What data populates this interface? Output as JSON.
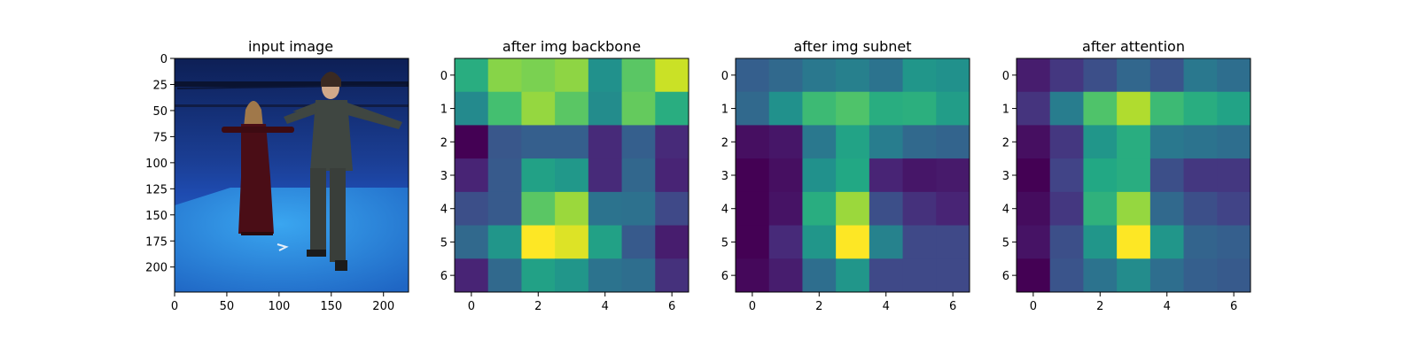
{
  "chart_data": [
    {
      "type": "image",
      "title": "input image",
      "xticks": [
        0,
        50,
        100,
        150,
        200
      ],
      "yticks": [
        0,
        25,
        50,
        75,
        100,
        125,
        150,
        175,
        200
      ],
      "xlim": [
        0,
        224
      ],
      "ylim": [
        224,
        0
      ],
      "scene": {
        "background": "#1a3f9a",
        "floor": "#2f8ee0",
        "description_colors": {
          "person_left_dress": "#3a0a10",
          "person_right_suit": "#3e4440"
        }
      }
    },
    {
      "type": "heatmap",
      "title": "after img backbone",
      "xticks": [
        0,
        2,
        4,
        6
      ],
      "yticks": [
        0,
        1,
        2,
        3,
        4,
        5,
        6
      ],
      "values": [
        [
          0.62,
          0.82,
          0.8,
          0.83,
          0.5,
          0.74,
          0.92
        ],
        [
          0.47,
          0.7,
          0.84,
          0.74,
          0.48,
          0.76,
          0.62
        ],
        [
          0.0,
          0.27,
          0.3,
          0.3,
          0.12,
          0.3,
          0.12
        ],
        [
          0.1,
          0.28,
          0.57,
          0.53,
          0.12,
          0.33,
          0.1
        ],
        [
          0.24,
          0.28,
          0.74,
          0.85,
          0.38,
          0.37,
          0.22
        ],
        [
          0.34,
          0.52,
          1.0,
          0.95,
          0.57,
          0.28,
          0.08
        ],
        [
          0.1,
          0.34,
          0.57,
          0.52,
          0.38,
          0.36,
          0.14
        ]
      ]
    },
    {
      "type": "heatmap",
      "title": "after img subnet",
      "xticks": [
        0,
        2,
        4,
        6
      ],
      "yticks": [
        0,
        1,
        2,
        3,
        4,
        5,
        6
      ],
      "values": [
        [
          0.3,
          0.34,
          0.4,
          0.43,
          0.38,
          0.52,
          0.5
        ],
        [
          0.34,
          0.5,
          0.68,
          0.72,
          0.62,
          0.63,
          0.55
        ],
        [
          0.04,
          0.06,
          0.4,
          0.58,
          0.42,
          0.34,
          0.32
        ],
        [
          0.0,
          0.04,
          0.5,
          0.6,
          0.1,
          0.06,
          0.07
        ],
        [
          0.0,
          0.05,
          0.62,
          0.85,
          0.24,
          0.14,
          0.1
        ],
        [
          0.0,
          0.12,
          0.52,
          1.0,
          0.44,
          0.22,
          0.22
        ],
        [
          0.02,
          0.08,
          0.36,
          0.52,
          0.22,
          0.22,
          0.22
        ]
      ]
    },
    {
      "type": "heatmap",
      "title": "after attention",
      "xticks": [
        0,
        2,
        4,
        6
      ],
      "yticks": [
        0,
        1,
        2,
        3,
        4,
        5,
        6
      ],
      "values": [
        [
          0.08,
          0.16,
          0.24,
          0.33,
          0.26,
          0.4,
          0.36
        ],
        [
          0.15,
          0.42,
          0.72,
          0.88,
          0.68,
          0.62,
          0.58
        ],
        [
          0.04,
          0.16,
          0.52,
          0.62,
          0.4,
          0.38,
          0.36
        ],
        [
          0.0,
          0.2,
          0.6,
          0.62,
          0.24,
          0.16,
          0.16
        ],
        [
          0.03,
          0.16,
          0.64,
          0.84,
          0.34,
          0.24,
          0.2
        ],
        [
          0.05,
          0.24,
          0.52,
          1.0,
          0.52,
          0.32,
          0.3
        ],
        [
          0.0,
          0.26,
          0.38,
          0.48,
          0.36,
          0.3,
          0.28
        ]
      ]
    }
  ]
}
